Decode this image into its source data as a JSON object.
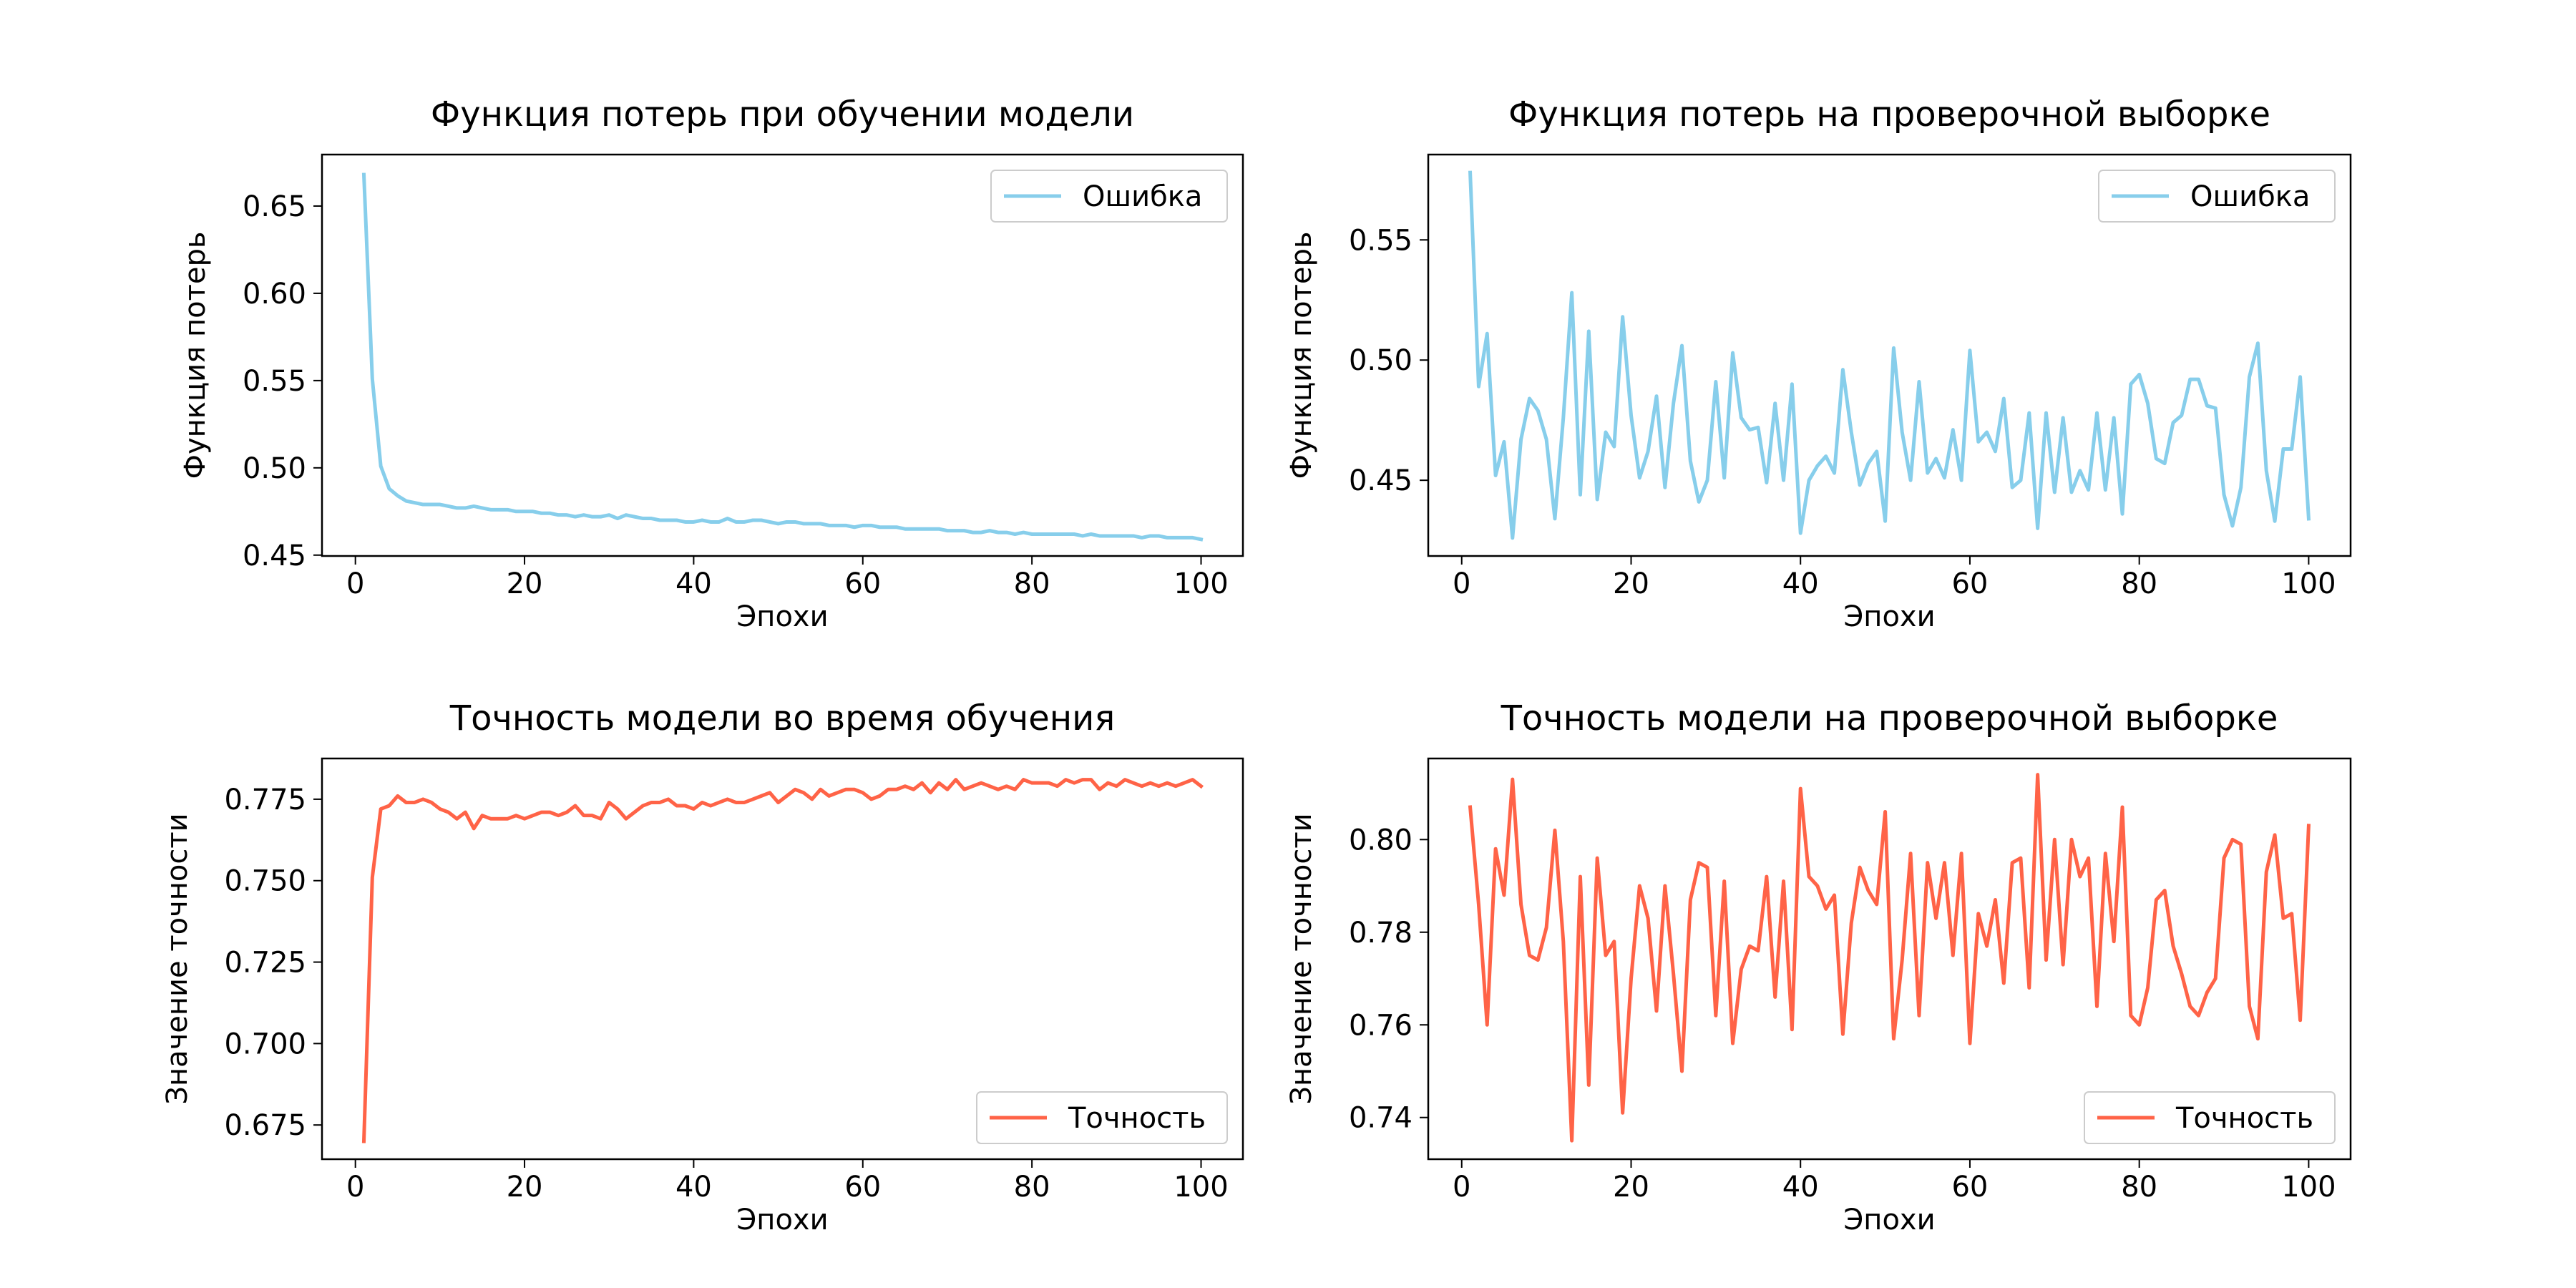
{
  "colors": {
    "loss": "#87CEEB",
    "accuracy": "#FF6347"
  },
  "chart_data": [
    {
      "type": "line",
      "title": "Функция потерь при обучении модели",
      "xlabel": "Эпохи",
      "ylabel": "Функция потерь",
      "xlim": [
        -3.95,
        104.95
      ],
      "ylim": [
        0.4495,
        0.6795
      ],
      "xticks": [
        0,
        20,
        40,
        60,
        80,
        100
      ],
      "xtick_labels": [
        "0",
        "20",
        "40",
        "60",
        "80",
        "100"
      ],
      "yticks": [
        0.45,
        0.5,
        0.55,
        0.6,
        0.65
      ],
      "ytick_labels": [
        "0.45",
        "0.50",
        "0.55",
        "0.60",
        "0.65"
      ],
      "legend": {
        "label": "Ошибка",
        "position": "upper-right"
      },
      "color_key": "loss",
      "x_start": 1,
      "values": [
        0.668,
        0.551,
        0.501,
        0.488,
        0.484,
        0.481,
        0.48,
        0.479,
        0.479,
        0.479,
        0.478,
        0.477,
        0.477,
        0.478,
        0.477,
        0.476,
        0.476,
        0.476,
        0.475,
        0.475,
        0.475,
        0.474,
        0.474,
        0.473,
        0.473,
        0.472,
        0.473,
        0.472,
        0.472,
        0.473,
        0.471,
        0.473,
        0.472,
        0.471,
        0.471,
        0.47,
        0.47,
        0.47,
        0.469,
        0.469,
        0.47,
        0.469,
        0.469,
        0.471,
        0.469,
        0.469,
        0.47,
        0.47,
        0.469,
        0.468,
        0.469,
        0.469,
        0.468,
        0.468,
        0.468,
        0.467,
        0.467,
        0.467,
        0.466,
        0.467,
        0.467,
        0.466,
        0.466,
        0.466,
        0.465,
        0.465,
        0.465,
        0.465,
        0.465,
        0.464,
        0.464,
        0.464,
        0.463,
        0.463,
        0.464,
        0.463,
        0.463,
        0.462,
        0.463,
        0.462,
        0.462,
        0.462,
        0.462,
        0.462,
        0.462,
        0.461,
        0.462,
        0.461,
        0.461,
        0.461,
        0.461,
        0.461,
        0.46,
        0.461,
        0.461,
        0.46,
        0.46,
        0.46,
        0.46,
        0.459
      ]
    },
    {
      "type": "line",
      "title": "Функция потерь на проверочной выборке",
      "xlabel": "Эпохи",
      "ylabel": "Функция потерь",
      "xlim": [
        -3.95,
        104.95
      ],
      "ylim": [
        0.4185,
        0.5855
      ],
      "xticks": [
        0,
        20,
        40,
        60,
        80,
        100
      ],
      "xtick_labels": [
        "0",
        "20",
        "40",
        "60",
        "80",
        "100"
      ],
      "yticks": [
        0.45,
        0.5,
        0.55
      ],
      "ytick_labels": [
        "0.45",
        "0.50",
        "0.55"
      ],
      "legend": {
        "label": "Ошибка",
        "position": "upper-right"
      },
      "color_key": "loss",
      "x_start": 1,
      "values": [
        0.578,
        0.489,
        0.511,
        0.452,
        0.466,
        0.426,
        0.467,
        0.484,
        0.479,
        0.467,
        0.434,
        0.476,
        0.528,
        0.444,
        0.512,
        0.442,
        0.47,
        0.464,
        0.518,
        0.477,
        0.451,
        0.462,
        0.485,
        0.447,
        0.482,
        0.506,
        0.458,
        0.441,
        0.45,
        0.491,
        0.451,
        0.503,
        0.476,
        0.471,
        0.472,
        0.449,
        0.482,
        0.45,
        0.49,
        0.428,
        0.45,
        0.456,
        0.46,
        0.453,
        0.496,
        0.47,
        0.448,
        0.457,
        0.462,
        0.433,
        0.505,
        0.47,
        0.45,
        0.491,
        0.453,
        0.459,
        0.451,
        0.471,
        0.45,
        0.504,
        0.466,
        0.47,
        0.462,
        0.484,
        0.447,
        0.45,
        0.478,
        0.43,
        0.478,
        0.445,
        0.476,
        0.445,
        0.454,
        0.446,
        0.478,
        0.446,
        0.476,
        0.436,
        0.49,
        0.494,
        0.482,
        0.459,
        0.457,
        0.474,
        0.477,
        0.492,
        0.492,
        0.481,
        0.48,
        0.444,
        0.431,
        0.447,
        0.493,
        0.507,
        0.454,
        0.433,
        0.463,
        0.463,
        0.493,
        0.434
      ]
    },
    {
      "type": "line",
      "title": "Точность модели во время обучения",
      "xlabel": "Эпохи",
      "ylabel": "Значение точности",
      "xlim": [
        -3.95,
        104.95
      ],
      "ylim": [
        0.6645,
        0.7875
      ],
      "xticks": [
        0,
        20,
        40,
        60,
        80,
        100
      ],
      "xtick_labels": [
        "0",
        "20",
        "40",
        "60",
        "80",
        "100"
      ],
      "yticks": [
        0.675,
        0.7,
        0.725,
        0.75,
        0.775
      ],
      "ytick_labels": [
        "0.675",
        "0.700",
        "0.725",
        "0.750",
        "0.775"
      ],
      "legend": {
        "label": "Точность",
        "position": "lower-right"
      },
      "color_key": "accuracy",
      "x_start": 1,
      "values": [
        0.67,
        0.751,
        0.772,
        0.773,
        0.776,
        0.774,
        0.774,
        0.775,
        0.774,
        0.772,
        0.771,
        0.769,
        0.771,
        0.766,
        0.77,
        0.769,
        0.769,
        0.769,
        0.77,
        0.769,
        0.77,
        0.771,
        0.771,
        0.77,
        0.771,
        0.773,
        0.77,
        0.77,
        0.769,
        0.774,
        0.772,
        0.769,
        0.771,
        0.773,
        0.774,
        0.774,
        0.775,
        0.773,
        0.773,
        0.772,
        0.774,
        0.773,
        0.774,
        0.775,
        0.774,
        0.774,
        0.775,
        0.776,
        0.777,
        0.774,
        0.776,
        0.778,
        0.777,
        0.775,
        0.778,
        0.776,
        0.777,
        0.778,
        0.778,
        0.777,
        0.775,
        0.776,
        0.778,
        0.778,
        0.779,
        0.778,
        0.78,
        0.777,
        0.78,
        0.778,
        0.781,
        0.778,
        0.779,
        0.78,
        0.779,
        0.778,
        0.779,
        0.778,
        0.781,
        0.78,
        0.78,
        0.78,
        0.779,
        0.781,
        0.78,
        0.781,
        0.781,
        0.778,
        0.78,
        0.779,
        0.781,
        0.78,
        0.779,
        0.78,
        0.779,
        0.78,
        0.779,
        0.78,
        0.781,
        0.779
      ]
    },
    {
      "type": "line",
      "title": "Точность модели на проверочной выборке",
      "xlabel": "Эпохи",
      "ylabel": "Значение точности",
      "xlim": [
        -3.95,
        104.95
      ],
      "ylim": [
        0.731,
        0.8175
      ],
      "xticks": [
        0,
        20,
        40,
        60,
        80,
        100
      ],
      "xtick_labels": [
        "0",
        "20",
        "40",
        "60",
        "80",
        "100"
      ],
      "yticks": [
        0.74,
        0.76,
        0.78,
        0.8
      ],
      "ytick_labels": [
        "0.74",
        "0.76",
        "0.78",
        "0.80"
      ],
      "legend": {
        "label": "Точность",
        "position": "lower-right"
      },
      "color_key": "accuracy",
      "x_start": 1,
      "values": [
        0.807,
        0.786,
        0.76,
        0.798,
        0.788,
        0.813,
        0.786,
        0.775,
        0.774,
        0.781,
        0.802,
        0.778,
        0.735,
        0.792,
        0.747,
        0.796,
        0.775,
        0.778,
        0.741,
        0.77,
        0.79,
        0.783,
        0.763,
        0.79,
        0.771,
        0.75,
        0.787,
        0.795,
        0.794,
        0.762,
        0.791,
        0.756,
        0.772,
        0.777,
        0.776,
        0.792,
        0.766,
        0.791,
        0.759,
        0.811,
        0.792,
        0.79,
        0.785,
        0.788,
        0.758,
        0.782,
        0.794,
        0.789,
        0.786,
        0.806,
        0.757,
        0.774,
        0.797,
        0.762,
        0.795,
        0.783,
        0.795,
        0.775,
        0.797,
        0.756,
        0.784,
        0.777,
        0.787,
        0.769,
        0.795,
        0.796,
        0.768,
        0.814,
        0.774,
        0.8,
        0.773,
        0.8,
        0.792,
        0.796,
        0.764,
        0.797,
        0.778,
        0.807,
        0.762,
        0.76,
        0.768,
        0.787,
        0.789,
        0.777,
        0.771,
        0.764,
        0.762,
        0.767,
        0.77,
        0.796,
        0.8,
        0.799,
        0.764,
        0.757,
        0.793,
        0.801,
        0.783,
        0.784,
        0.761,
        0.803
      ]
    }
  ]
}
